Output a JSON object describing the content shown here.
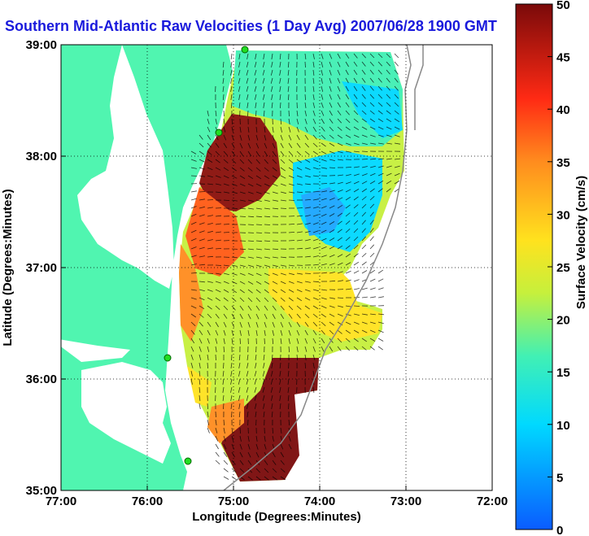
{
  "title": "Southern Mid-Atlantic Raw Velocities (1 Day Avg) 2007/06/28 1900 GMT",
  "xaxis": {
    "label": "Longitude (Degrees:Minutes)",
    "ticks": [
      "77:00",
      "76:00",
      "75:00",
      "74:00",
      "73:00",
      "72:00"
    ],
    "range": [
      -77,
      -72
    ]
  },
  "yaxis": {
    "label": "Latitude (Degrees:Minutes)",
    "ticks": [
      "39:00",
      "38:00",
      "37:00",
      "36:00",
      "35:00"
    ],
    "range": [
      35,
      39
    ]
  },
  "colorbar": {
    "label": "Surface Velocity (cm/s)",
    "ticks": [
      "50",
      "45",
      "40",
      "35",
      "30",
      "25",
      "20",
      "15",
      "10",
      "5",
      "0"
    ],
    "range": [
      0,
      50
    ],
    "colors": [
      "#0a5cff",
      "#00d9ff",
      "#41f0b4",
      "#c6f03c",
      "#ffe21e",
      "#ff8c1e",
      "#ff2a14",
      "#7a0a0a"
    ]
  },
  "land_color": "#50f5b0",
  "grid": "dotted",
  "stations": 4
}
